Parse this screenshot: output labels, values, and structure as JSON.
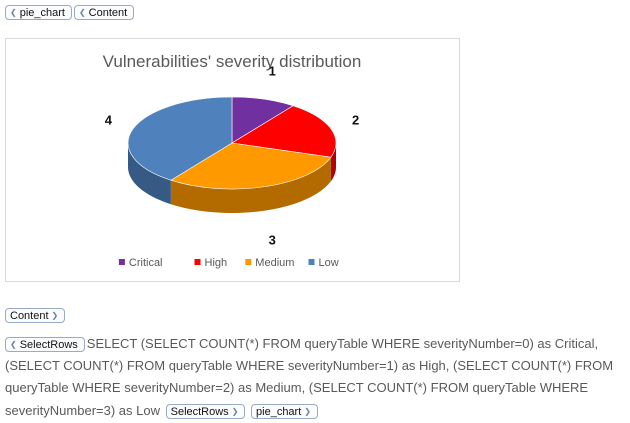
{
  "tags": {
    "pie_chart_open": "pie_chart",
    "content_open": "Content",
    "content_close": "Content",
    "selectrows_open": "SelectRows",
    "selectrows_close": "SelectRows",
    "pie_chart_close": "pie_chart"
  },
  "sql": {
    "text_main": "SELECT (SELECT COUNT(*) FROM queryTable WHERE severityNumber=0) as Critical, (SELECT COUNT(*) FROM queryTable WHERE severityNumber=1) as High, (SELECT COUNT(*) FROM queryTable WHERE severityNumber=2) as Medium, (SELECT COUNT(*) FROM queryTable WHERE",
    "text_tail": "severityNumber=3) as Low"
  },
  "chart_data": {
    "type": "pie",
    "title": "Vulnerabilities' severity distribution",
    "categories": [
      "Critical",
      "High",
      "Medium",
      "Low"
    ],
    "values": [
      1,
      2,
      3,
      4
    ],
    "data_labels": [
      "1",
      "2",
      "3",
      "4"
    ],
    "colors": [
      "#7030a0",
      "#ff0000",
      "#ff9900",
      "#4f81bd"
    ],
    "legend_position": "bottom",
    "style": "3d"
  }
}
